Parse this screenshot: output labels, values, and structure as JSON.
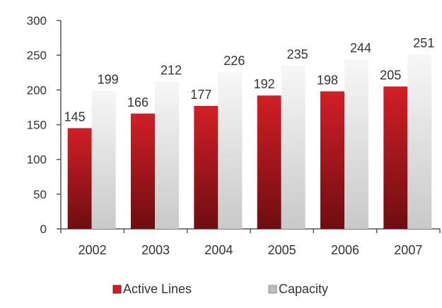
{
  "chart_data": {
    "type": "bar",
    "categories": [
      "2002",
      "2003",
      "2004",
      "2005",
      "2006",
      "2007"
    ],
    "series": [
      {
        "name": "Active Lines",
        "values": [
          145,
          166,
          177,
          192,
          198,
          205
        ]
      },
      {
        "name": "Capacity",
        "values": [
          199,
          212,
          226,
          235,
          244,
          251
        ]
      }
    ],
    "ylim": [
      0,
      300
    ],
    "yticks": [
      "0",
      "50",
      "100",
      "150",
      "200",
      "250",
      "300"
    ],
    "grid": false,
    "legend": "bottom-center",
    "colors": {
      "active_top": "#d21f26",
      "active_bottom": "#6e0d12",
      "capacity_top": "#f7f7f7",
      "capacity_bottom": "#c9c9c9",
      "axis": "#555555"
    }
  }
}
